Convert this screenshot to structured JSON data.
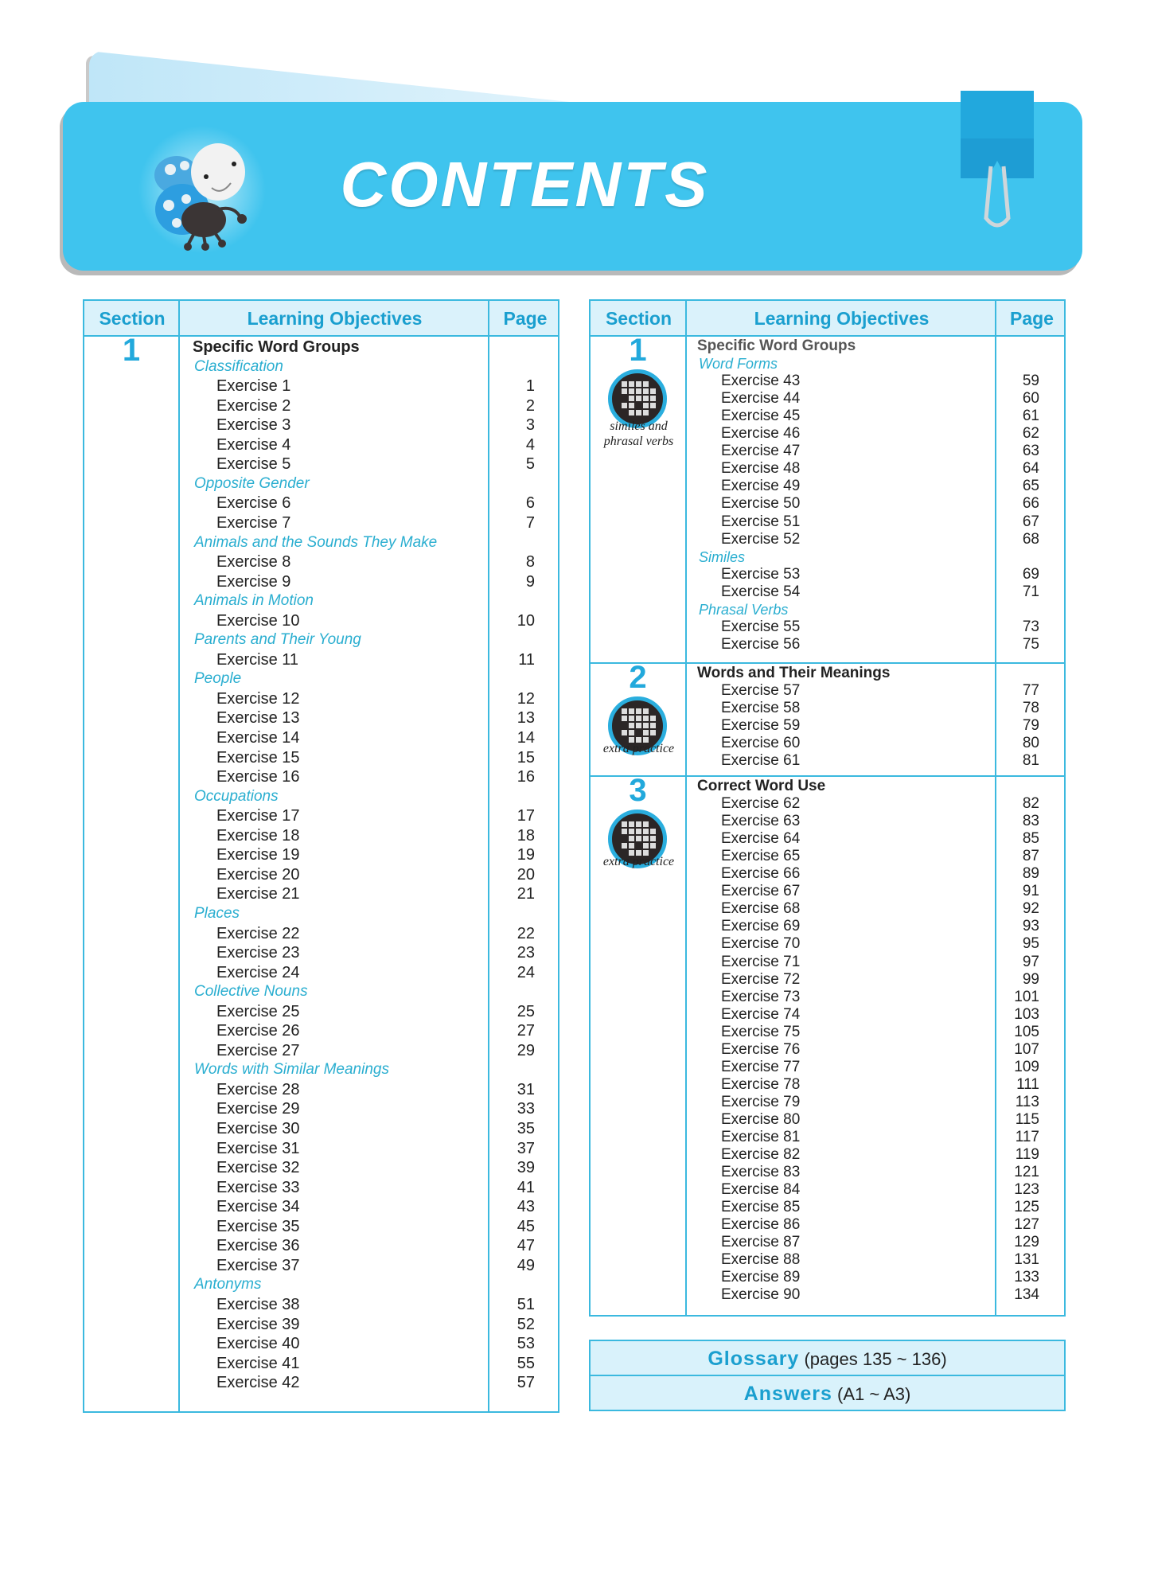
{
  "banner": {
    "title": "CONTENTS",
    "color": "#3fc4ee"
  },
  "headers": {
    "section": "Section",
    "objectives": "Learning Objectives",
    "page": "Page"
  },
  "left_table": {
    "sections": [
      {
        "number": "1",
        "lines": [
          {
            "type": "title",
            "text": "Specific Word Groups"
          },
          {
            "type": "head",
            "text": "Classification"
          },
          {
            "type": "ex",
            "text": "Exercise 1",
            "page": "1"
          },
          {
            "type": "ex",
            "text": "Exercise 2",
            "page": "2"
          },
          {
            "type": "ex",
            "text": "Exercise 3",
            "page": "3"
          },
          {
            "type": "ex",
            "text": "Exercise 4",
            "page": "4"
          },
          {
            "type": "ex",
            "text": "Exercise 5",
            "page": "5"
          },
          {
            "type": "head",
            "text": "Opposite Gender"
          },
          {
            "type": "ex",
            "text": "Exercise 6",
            "page": "6"
          },
          {
            "type": "ex",
            "text": "Exercise 7",
            "page": "7"
          },
          {
            "type": "head",
            "text": "Animals and the Sounds They Make"
          },
          {
            "type": "ex",
            "text": "Exercise 8",
            "page": "8"
          },
          {
            "type": "ex",
            "text": "Exercise 9",
            "page": "9"
          },
          {
            "type": "head",
            "text": "Animals in Motion"
          },
          {
            "type": "ex",
            "text": "Exercise 10",
            "page": "10"
          },
          {
            "type": "head",
            "text": "Parents and Their Young"
          },
          {
            "type": "ex",
            "text": "Exercise 11",
            "page": "11"
          },
          {
            "type": "head",
            "text": "People"
          },
          {
            "type": "ex",
            "text": "Exercise 12",
            "page": "12"
          },
          {
            "type": "ex",
            "text": "Exercise 13",
            "page": "13"
          },
          {
            "type": "ex",
            "text": "Exercise 14",
            "page": "14"
          },
          {
            "type": "ex",
            "text": "Exercise 15",
            "page": "15"
          },
          {
            "type": "ex",
            "text": "Exercise 16",
            "page": "16"
          },
          {
            "type": "head",
            "text": "Occupations"
          },
          {
            "type": "ex",
            "text": "Exercise 17",
            "page": "17"
          },
          {
            "type": "ex",
            "text": "Exercise 18",
            "page": "18"
          },
          {
            "type": "ex",
            "text": "Exercise 19",
            "page": "19"
          },
          {
            "type": "ex",
            "text": "Exercise 20",
            "page": "20"
          },
          {
            "type": "ex",
            "text": "Exercise 21",
            "page": "21"
          },
          {
            "type": "head",
            "text": "Places"
          },
          {
            "type": "ex",
            "text": "Exercise 22",
            "page": "22"
          },
          {
            "type": "ex",
            "text": "Exercise 23",
            "page": "23"
          },
          {
            "type": "ex",
            "text": "Exercise 24",
            "page": "24"
          },
          {
            "type": "head",
            "text": "Collective Nouns"
          },
          {
            "type": "ex",
            "text": "Exercise 25",
            "page": "25"
          },
          {
            "type": "ex",
            "text": "Exercise 26",
            "page": "27"
          },
          {
            "type": "ex",
            "text": "Exercise 27",
            "page": "29"
          },
          {
            "type": "head",
            "text": "Words with Similar Meanings"
          },
          {
            "type": "ex",
            "text": "Exercise 28",
            "page": "31"
          },
          {
            "type": "ex",
            "text": "Exercise 29",
            "page": "33"
          },
          {
            "type": "ex",
            "text": "Exercise 30",
            "page": "35"
          },
          {
            "type": "ex",
            "text": "Exercise 31",
            "page": "37"
          },
          {
            "type": "ex",
            "text": "Exercise 32",
            "page": "39"
          },
          {
            "type": "ex",
            "text": "Exercise 33",
            "page": "41"
          },
          {
            "type": "ex",
            "text": "Exercise 34",
            "page": "43"
          },
          {
            "type": "ex",
            "text": "Exercise 35",
            "page": "45"
          },
          {
            "type": "ex",
            "text": "Exercise 36",
            "page": "47"
          },
          {
            "type": "ex",
            "text": "Exercise 37",
            "page": "49"
          },
          {
            "type": "head",
            "text": "Antonyms"
          },
          {
            "type": "ex",
            "text": "Exercise 38",
            "page": "51"
          },
          {
            "type": "ex",
            "text": "Exercise 39",
            "page": "52"
          },
          {
            "type": "ex",
            "text": "Exercise 40",
            "page": "53"
          },
          {
            "type": "ex",
            "text": "Exercise 41",
            "page": "55"
          },
          {
            "type": "ex",
            "text": "Exercise 42",
            "page": "57"
          }
        ]
      }
    ]
  },
  "right_table": {
    "sections": [
      {
        "number": "1",
        "badge_caption": "similes and phrasal verbs",
        "badge_icon": "crossword-icon",
        "lines": [
          {
            "type": "title-muted",
            "text": "Specific Word Groups"
          },
          {
            "type": "head",
            "text": "Word Forms"
          },
          {
            "type": "ex",
            "text": "Exercise 43",
            "page": "59"
          },
          {
            "type": "ex",
            "text": "Exercise 44",
            "page": "60"
          },
          {
            "type": "ex",
            "text": "Exercise 45",
            "page": "61"
          },
          {
            "type": "ex",
            "text": "Exercise 46",
            "page": "62"
          },
          {
            "type": "ex",
            "text": "Exercise 47",
            "page": "63"
          },
          {
            "type": "ex",
            "text": "Exercise 48",
            "page": "64"
          },
          {
            "type": "ex",
            "text": "Exercise 49",
            "page": "65"
          },
          {
            "type": "ex",
            "text": "Exercise 50",
            "page": "66"
          },
          {
            "type": "ex",
            "text": "Exercise 51",
            "page": "67"
          },
          {
            "type": "ex",
            "text": "Exercise 52",
            "page": "68"
          },
          {
            "type": "head",
            "text": "Similes"
          },
          {
            "type": "ex",
            "text": "Exercise 53",
            "page": "69"
          },
          {
            "type": "ex",
            "text": "Exercise 54",
            "page": "71"
          },
          {
            "type": "head",
            "text": "Phrasal Verbs"
          },
          {
            "type": "ex",
            "text": "Exercise 55",
            "page": "73"
          },
          {
            "type": "ex",
            "text": "Exercise 56",
            "page": "75"
          }
        ]
      },
      {
        "number": "2",
        "badge_caption": "extra practice",
        "badge_icon": "crossword-icon",
        "lines": [
          {
            "type": "title",
            "text": "Words and Their Meanings"
          },
          {
            "type": "ex",
            "text": "Exercise 57",
            "page": "77"
          },
          {
            "type": "ex",
            "text": "Exercise 58",
            "page": "78"
          },
          {
            "type": "ex",
            "text": "Exercise 59",
            "page": "79"
          },
          {
            "type": "ex",
            "text": "Exercise 60",
            "page": "80"
          },
          {
            "type": "ex",
            "text": "Exercise 61",
            "page": "81"
          }
        ]
      },
      {
        "number": "3",
        "badge_caption": "extra practice",
        "badge_icon": "crossword-icon",
        "lines": [
          {
            "type": "title",
            "text": "Correct Word Use"
          },
          {
            "type": "ex",
            "text": "Exercise 62",
            "page": "82"
          },
          {
            "type": "ex",
            "text": "Exercise 63",
            "page": "83"
          },
          {
            "type": "ex",
            "text": "Exercise 64",
            "page": "85"
          },
          {
            "type": "ex",
            "text": "Exercise 65",
            "page": "87"
          },
          {
            "type": "ex",
            "text": "Exercise 66",
            "page": "89"
          },
          {
            "type": "ex",
            "text": "Exercise 67",
            "page": "91"
          },
          {
            "type": "ex",
            "text": "Exercise 68",
            "page": "92"
          },
          {
            "type": "ex",
            "text": "Exercise 69",
            "page": "93"
          },
          {
            "type": "ex",
            "text": "Exercise 70",
            "page": "95"
          },
          {
            "type": "ex",
            "text": "Exercise 71",
            "page": "97"
          },
          {
            "type": "ex",
            "text": "Exercise 72",
            "page": "99"
          },
          {
            "type": "ex",
            "text": "Exercise 73",
            "page": "101"
          },
          {
            "type": "ex",
            "text": "Exercise 74",
            "page": "103"
          },
          {
            "type": "ex",
            "text": "Exercise 75",
            "page": "105"
          },
          {
            "type": "ex",
            "text": "Exercise 76",
            "page": "107"
          },
          {
            "type": "ex",
            "text": "Exercise 77",
            "page": "109"
          },
          {
            "type": "ex",
            "text": "Exercise 78",
            "page": "111"
          },
          {
            "type": "ex",
            "text": "Exercise 79",
            "page": "113"
          },
          {
            "type": "ex",
            "text": "Exercise 80",
            "page": "115"
          },
          {
            "type": "ex",
            "text": "Exercise 81",
            "page": "117"
          },
          {
            "type": "ex",
            "text": "Exercise 82",
            "page": "119"
          },
          {
            "type": "ex",
            "text": "Exercise 83",
            "page": "121"
          },
          {
            "type": "ex",
            "text": "Exercise 84",
            "page": "123"
          },
          {
            "type": "ex",
            "text": "Exercise 85",
            "page": "125"
          },
          {
            "type": "ex",
            "text": "Exercise 86",
            "page": "127"
          },
          {
            "type": "ex",
            "text": "Exercise 87",
            "page": "129"
          },
          {
            "type": "ex",
            "text": "Exercise 88",
            "page": "131"
          },
          {
            "type": "ex",
            "text": "Exercise 89",
            "page": "133"
          },
          {
            "type": "ex",
            "text": "Exercise 90",
            "page": "134"
          }
        ]
      }
    ]
  },
  "extras": [
    {
      "label": "Glossary",
      "detail": "(pages 135 ~ 136)"
    },
    {
      "label": "Answers",
      "detail": "(A1 ~ A3)"
    }
  ],
  "colors": {
    "accent": "#1a9fcf",
    "border": "#3bb9df",
    "header_bg": "#daf2fb",
    "subheading": "#2aaed0"
  }
}
